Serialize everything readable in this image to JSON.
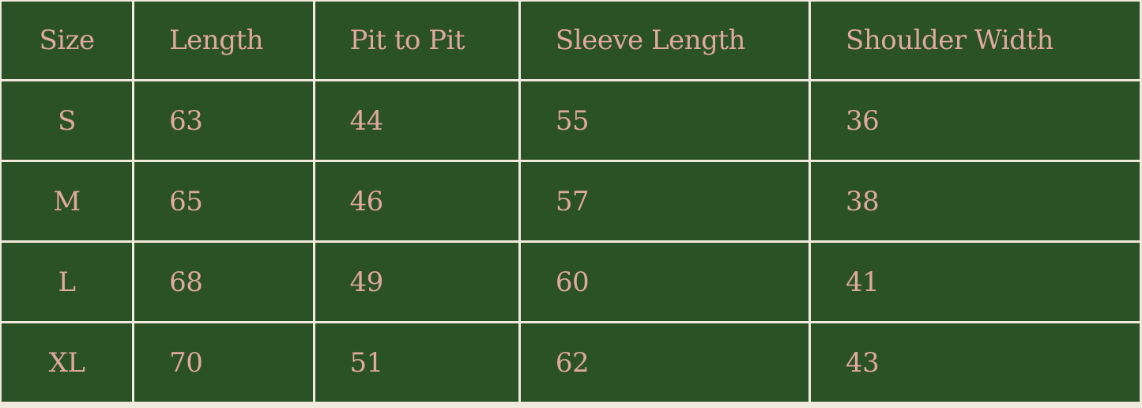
{
  "colors": {
    "cell_background": "#2b5126",
    "text": "#dfa8a0",
    "grid_lines": "#efeadb"
  },
  "table": {
    "headers": [
      "Size",
      "Length",
      "Pit to Pit",
      "Sleeve Length",
      "Shoulder Width"
    ],
    "rows": [
      [
        "S",
        "63",
        "44",
        "55",
        "36"
      ],
      [
        "M",
        "65",
        "46",
        "57",
        "38"
      ],
      [
        "L",
        "68",
        "49",
        "60",
        "41"
      ],
      [
        "XL",
        "70",
        "51",
        "62",
        "43"
      ]
    ]
  }
}
